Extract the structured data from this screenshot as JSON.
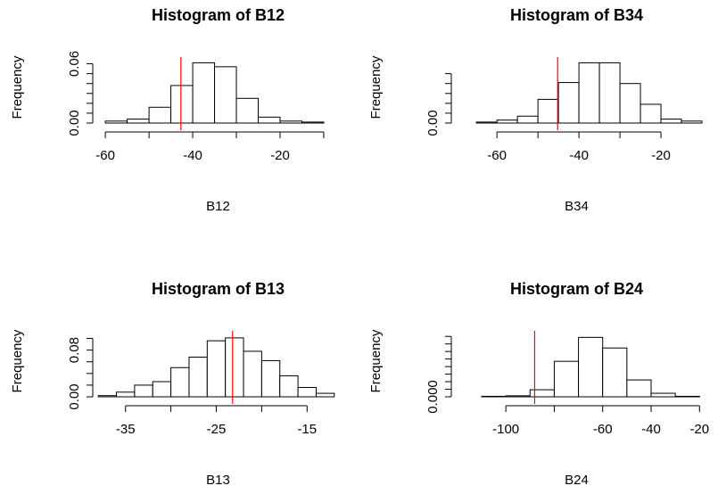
{
  "chart_data": [
    {
      "type": "histogram",
      "title": "Histogram of B12",
      "xlabel": "B12",
      "ylabel": "Frequency",
      "bins": [
        -60,
        -55,
        -50,
        -45,
        -40,
        -35,
        -30,
        -25,
        -20,
        -15,
        -10
      ],
      "values": [
        0.002,
        0.004,
        0.016,
        0.038,
        0.061,
        0.057,
        0.025,
        0.006,
        0.002,
        0.001
      ],
      "color": "#ffffff",
      "edge_color": "#000000",
      "xlim": [
        -63.7,
        -5.5
      ],
      "ylim": [
        0,
        0.065
      ],
      "xticks": [
        -60,
        -40,
        -20
      ],
      "xticks_minor": [
        -50,
        -30,
        -10
      ],
      "yticks": [
        {
          "value": 0,
          "label": "0.00"
        },
        {
          "value": 0.06,
          "label": "0.06"
        }
      ],
      "yticks_minor": [
        0.01,
        0.02,
        0.03,
        0.04,
        0.05
      ],
      "vline": -42.7,
      "vline_color": "#ff0000"
    },
    {
      "type": "histogram",
      "title": "Histogram of B34",
      "xlabel": "B34",
      "ylabel": "Frequency",
      "bins": [
        -65,
        -60,
        -55,
        -50,
        -45,
        -40,
        -35,
        -30,
        -25,
        -20,
        -15,
        -10
      ],
      "values": [
        0.001,
        0.003,
        0.007,
        0.024,
        0.041,
        0.061,
        0.061,
        0.04,
        0.019,
        0.004,
        0.002
      ],
      "color": "#ffffff",
      "edge_color": "#000000",
      "xlim": [
        -72,
        -10
      ],
      "ylim": [
        0,
        0.065
      ],
      "xticks": [
        -60,
        -40,
        -20
      ],
      "xticks_minor": [
        -50,
        -30
      ],
      "yticks": [
        {
          "value": 0,
          "label": "0.00"
        }
      ],
      "yticks_minor": [
        0.01,
        0.02,
        0.03,
        0.04,
        0.05
      ],
      "vline": -45.2,
      "vline_color": "#ff0000"
    },
    {
      "type": "histogram",
      "title": "Histogram of B13",
      "xlabel": "B13",
      "ylabel": "Frequency",
      "bins": [
        -38,
        -36,
        -34,
        -32,
        -30,
        -28,
        -26,
        -24,
        -22,
        -20,
        -18,
        -16,
        -14,
        -12
      ],
      "values": [
        0.002,
        0.008,
        0.02,
        0.026,
        0.05,
        0.068,
        0.096,
        0.101,
        0.078,
        0.062,
        0.036,
        0.016,
        0.006
      ],
      "color": "#ffffff",
      "edge_color": "#000000",
      "xlim": [
        -39,
        -11
      ],
      "ylim": [
        0,
        0.11
      ],
      "xticks": [
        -35,
        -25,
        -15
      ],
      "xticks_minor": [
        -30,
        -20
      ],
      "yticks": [
        {
          "value": 0,
          "label": "0.00"
        },
        {
          "value": 0.08,
          "label": "0.08"
        }
      ],
      "yticks_minor": [
        0.02,
        0.04,
        0.06,
        0.1
      ],
      "vline": -23.2,
      "vline_color": "#ff0000"
    },
    {
      "type": "histogram",
      "title": "Histogram of B24",
      "xlabel": "B24",
      "ylabel": "Frequency",
      "bins": [
        -110,
        -100,
        -90,
        -80,
        -70,
        -60,
        -50,
        -40,
        -30,
        -20
      ],
      "values": [
        0.0002,
        0.0004,
        0.0028,
        0.0141,
        0.0236,
        0.0194,
        0.0067,
        0.0014,
        0.0002
      ],
      "color": "#ffffff",
      "edge_color": "#000000",
      "xlim": [
        -124,
        -19
      ],
      "ylim": [
        0,
        0.0255
      ],
      "xticks": [
        -100,
        -60,
        -40,
        -20
      ],
      "xticks_minor": [
        -80
      ],
      "yticks": [
        {
          "value": 0,
          "label": "0.000"
        }
      ],
      "yticks_minor": [
        0.003,
        0.006,
        0.009,
        0.012,
        0.015,
        0.018,
        0.021,
        0.024
      ],
      "vline": -88.1,
      "vline_color": "#ff0000"
    }
  ]
}
